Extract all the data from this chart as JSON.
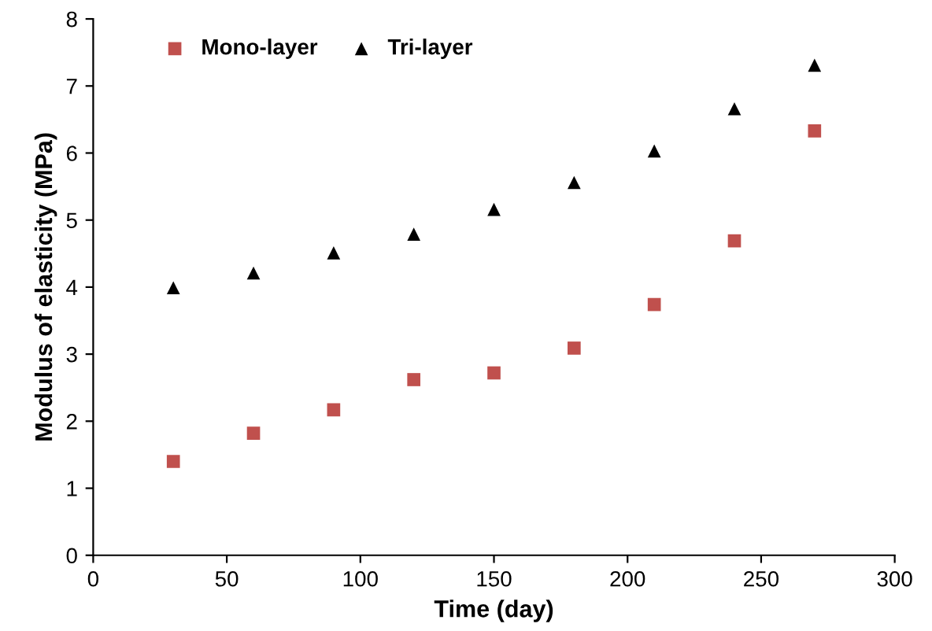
{
  "chart_data": {
    "type": "scatter",
    "xlabel": "Time (day)",
    "ylabel": "Modulus of elasticity (MPa)",
    "x": [
      30,
      60,
      90,
      120,
      150,
      180,
      210,
      240,
      270
    ],
    "series": [
      {
        "name": "Mono-layer",
        "color": "#c0504d",
        "marker": "square",
        "values": [
          1.4,
          1.82,
          2.17,
          2.62,
          2.72,
          3.09,
          3.74,
          4.69,
          6.33
        ]
      },
      {
        "name": "Tri-layer",
        "color": "#000000",
        "marker": "triangle",
        "values": [
          3.99,
          4.21,
          4.51,
          4.79,
          5.16,
          5.56,
          6.03,
          6.66,
          7.31
        ]
      }
    ],
    "xlim": [
      0,
      300
    ],
    "xticks": [
      0,
      50,
      100,
      150,
      200,
      250,
      300
    ],
    "ylim": [
      0,
      8
    ],
    "yticks": [
      0,
      1,
      2,
      3,
      4,
      5,
      6,
      7,
      8
    ],
    "grid": false,
    "legend": "top left"
  }
}
